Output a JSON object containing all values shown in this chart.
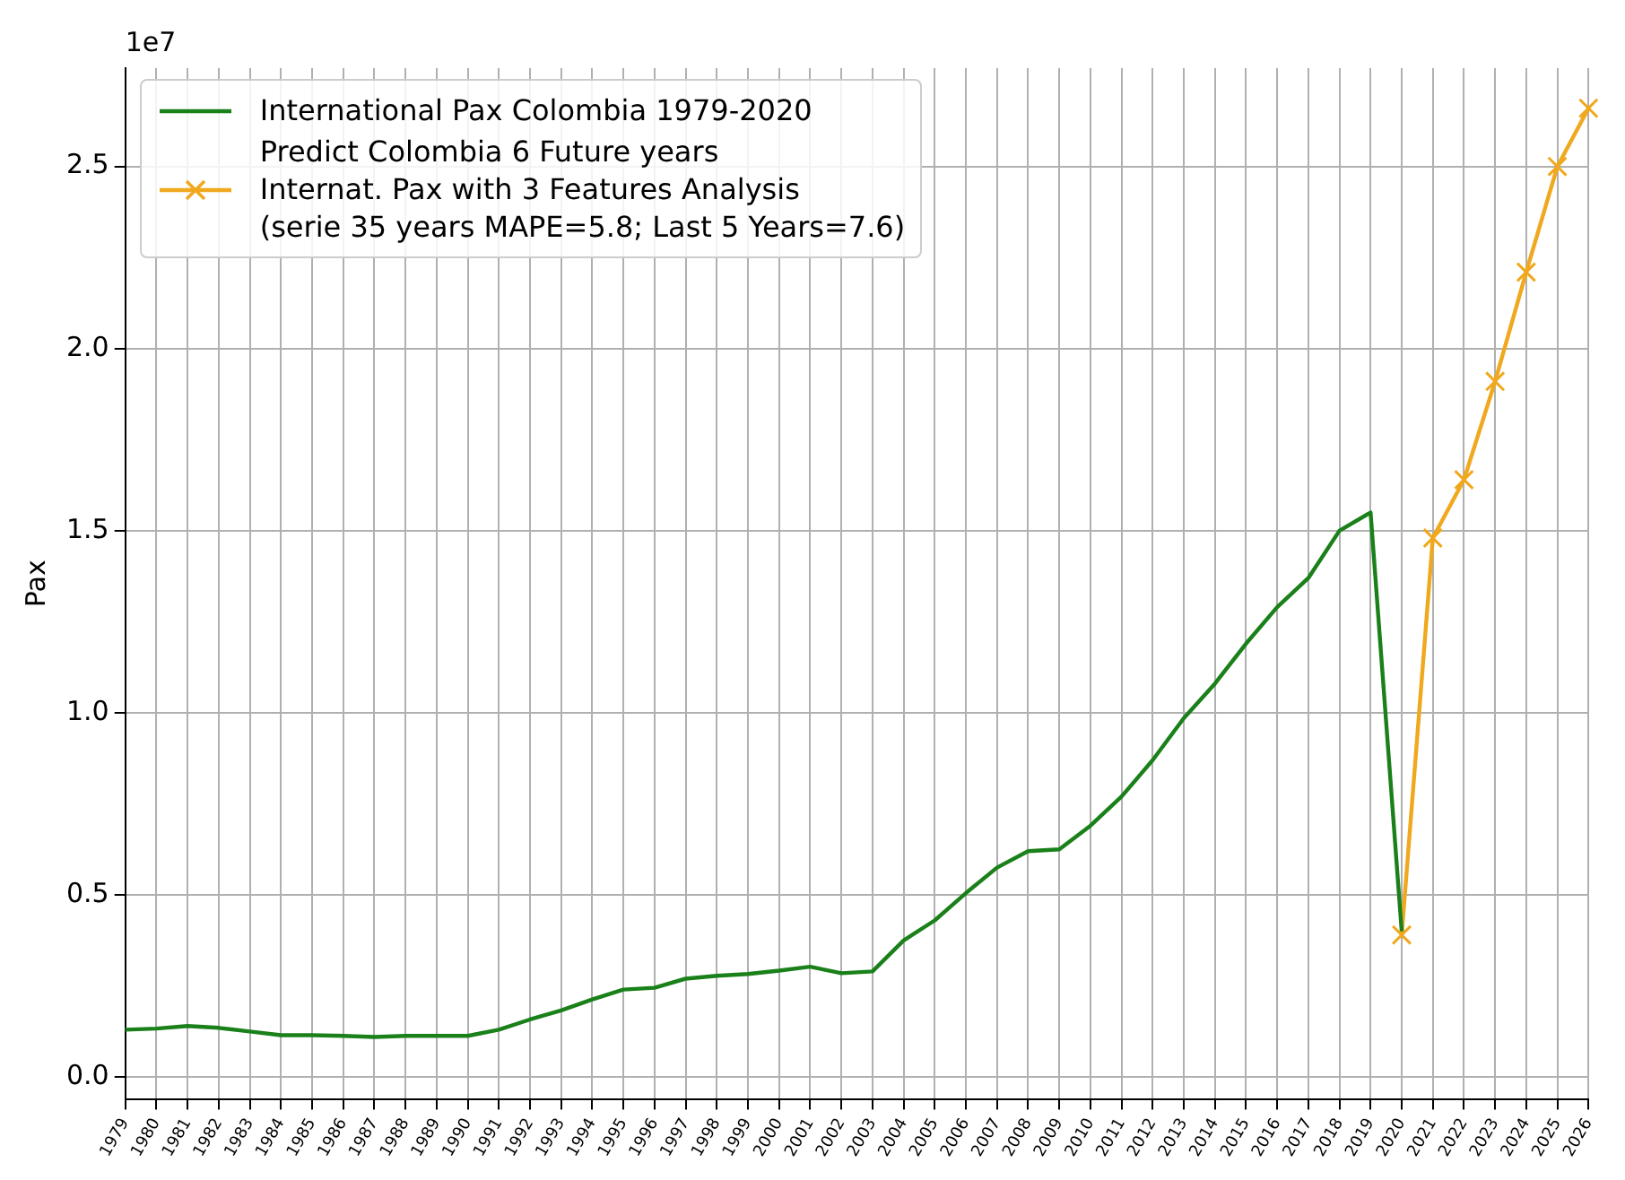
{
  "chart_data": {
    "type": "line",
    "ylabel": "Pax",
    "annotations": [
      "1e7"
    ],
    "categories": [
      "1979",
      "1980",
      "1981",
      "1982",
      "1983",
      "1984",
      "1985",
      "1986",
      "1987",
      "1988",
      "1989",
      "1990",
      "1991",
      "1992",
      "1993",
      "1994",
      "1995",
      "1996",
      "1997",
      "1998",
      "1999",
      "2000",
      "2001",
      "2002",
      "2003",
      "2004",
      "2005",
      "2006",
      "2007",
      "2008",
      "2009",
      "2010",
      "2011",
      "2012",
      "2013",
      "2014",
      "2015",
      "2016",
      "2017",
      "2018",
      "2019",
      "2020",
      "2021",
      "2022",
      "2023",
      "2024",
      "2025",
      "2026"
    ],
    "series": [
      {
        "name": "International Pax Colombia 1979-2020",
        "color": "#1a801a",
        "marker": "none",
        "values": [
          0.13,
          0.133,
          0.14,
          0.135,
          0.125,
          0.115,
          0.115,
          0.113,
          0.11,
          0.113,
          0.113,
          0.113,
          0.13,
          0.158,
          0.183,
          0.213,
          0.24,
          0.245,
          0.27,
          0.278,
          0.283,
          0.292,
          0.303,
          0.285,
          0.29,
          0.375,
          0.43,
          0.505,
          0.575,
          0.62,
          0.625,
          0.69,
          0.77,
          0.87,
          0.985,
          1.08,
          1.19,
          1.29,
          1.37,
          1.5,
          1.55,
          0.4,
          null,
          null,
          null,
          null,
          null,
          null
        ]
      },
      {
        "name": "Predict Colombia 6 Future years\nInternat. Pax with 3 Features Analysis\n(serie 35 years MAPE=5.8; Last 5 Years=7.6)",
        "color": "#f0a81e",
        "marker": "cross",
        "values": [
          null,
          null,
          null,
          null,
          null,
          null,
          null,
          null,
          null,
          null,
          null,
          null,
          null,
          null,
          null,
          null,
          null,
          null,
          null,
          null,
          null,
          null,
          null,
          null,
          null,
          null,
          null,
          null,
          null,
          null,
          null,
          null,
          null,
          null,
          null,
          null,
          null,
          null,
          null,
          null,
          null,
          0.39,
          1.48,
          1.64,
          1.91,
          2.21,
          2.5,
          2.66
        ]
      }
    ],
    "ylim": [
      -0.06,
      2.77
    ],
    "yticks": [
      {
        "value": 0,
        "label": "0.0"
      },
      0.5,
      {
        "value": 1,
        "label": "1.0"
      },
      1.5,
      {
        "value": 2,
        "label": "2.0"
      },
      2.5
    ],
    "grid": true,
    "legend": "top left",
    "line_style": "solid"
  }
}
